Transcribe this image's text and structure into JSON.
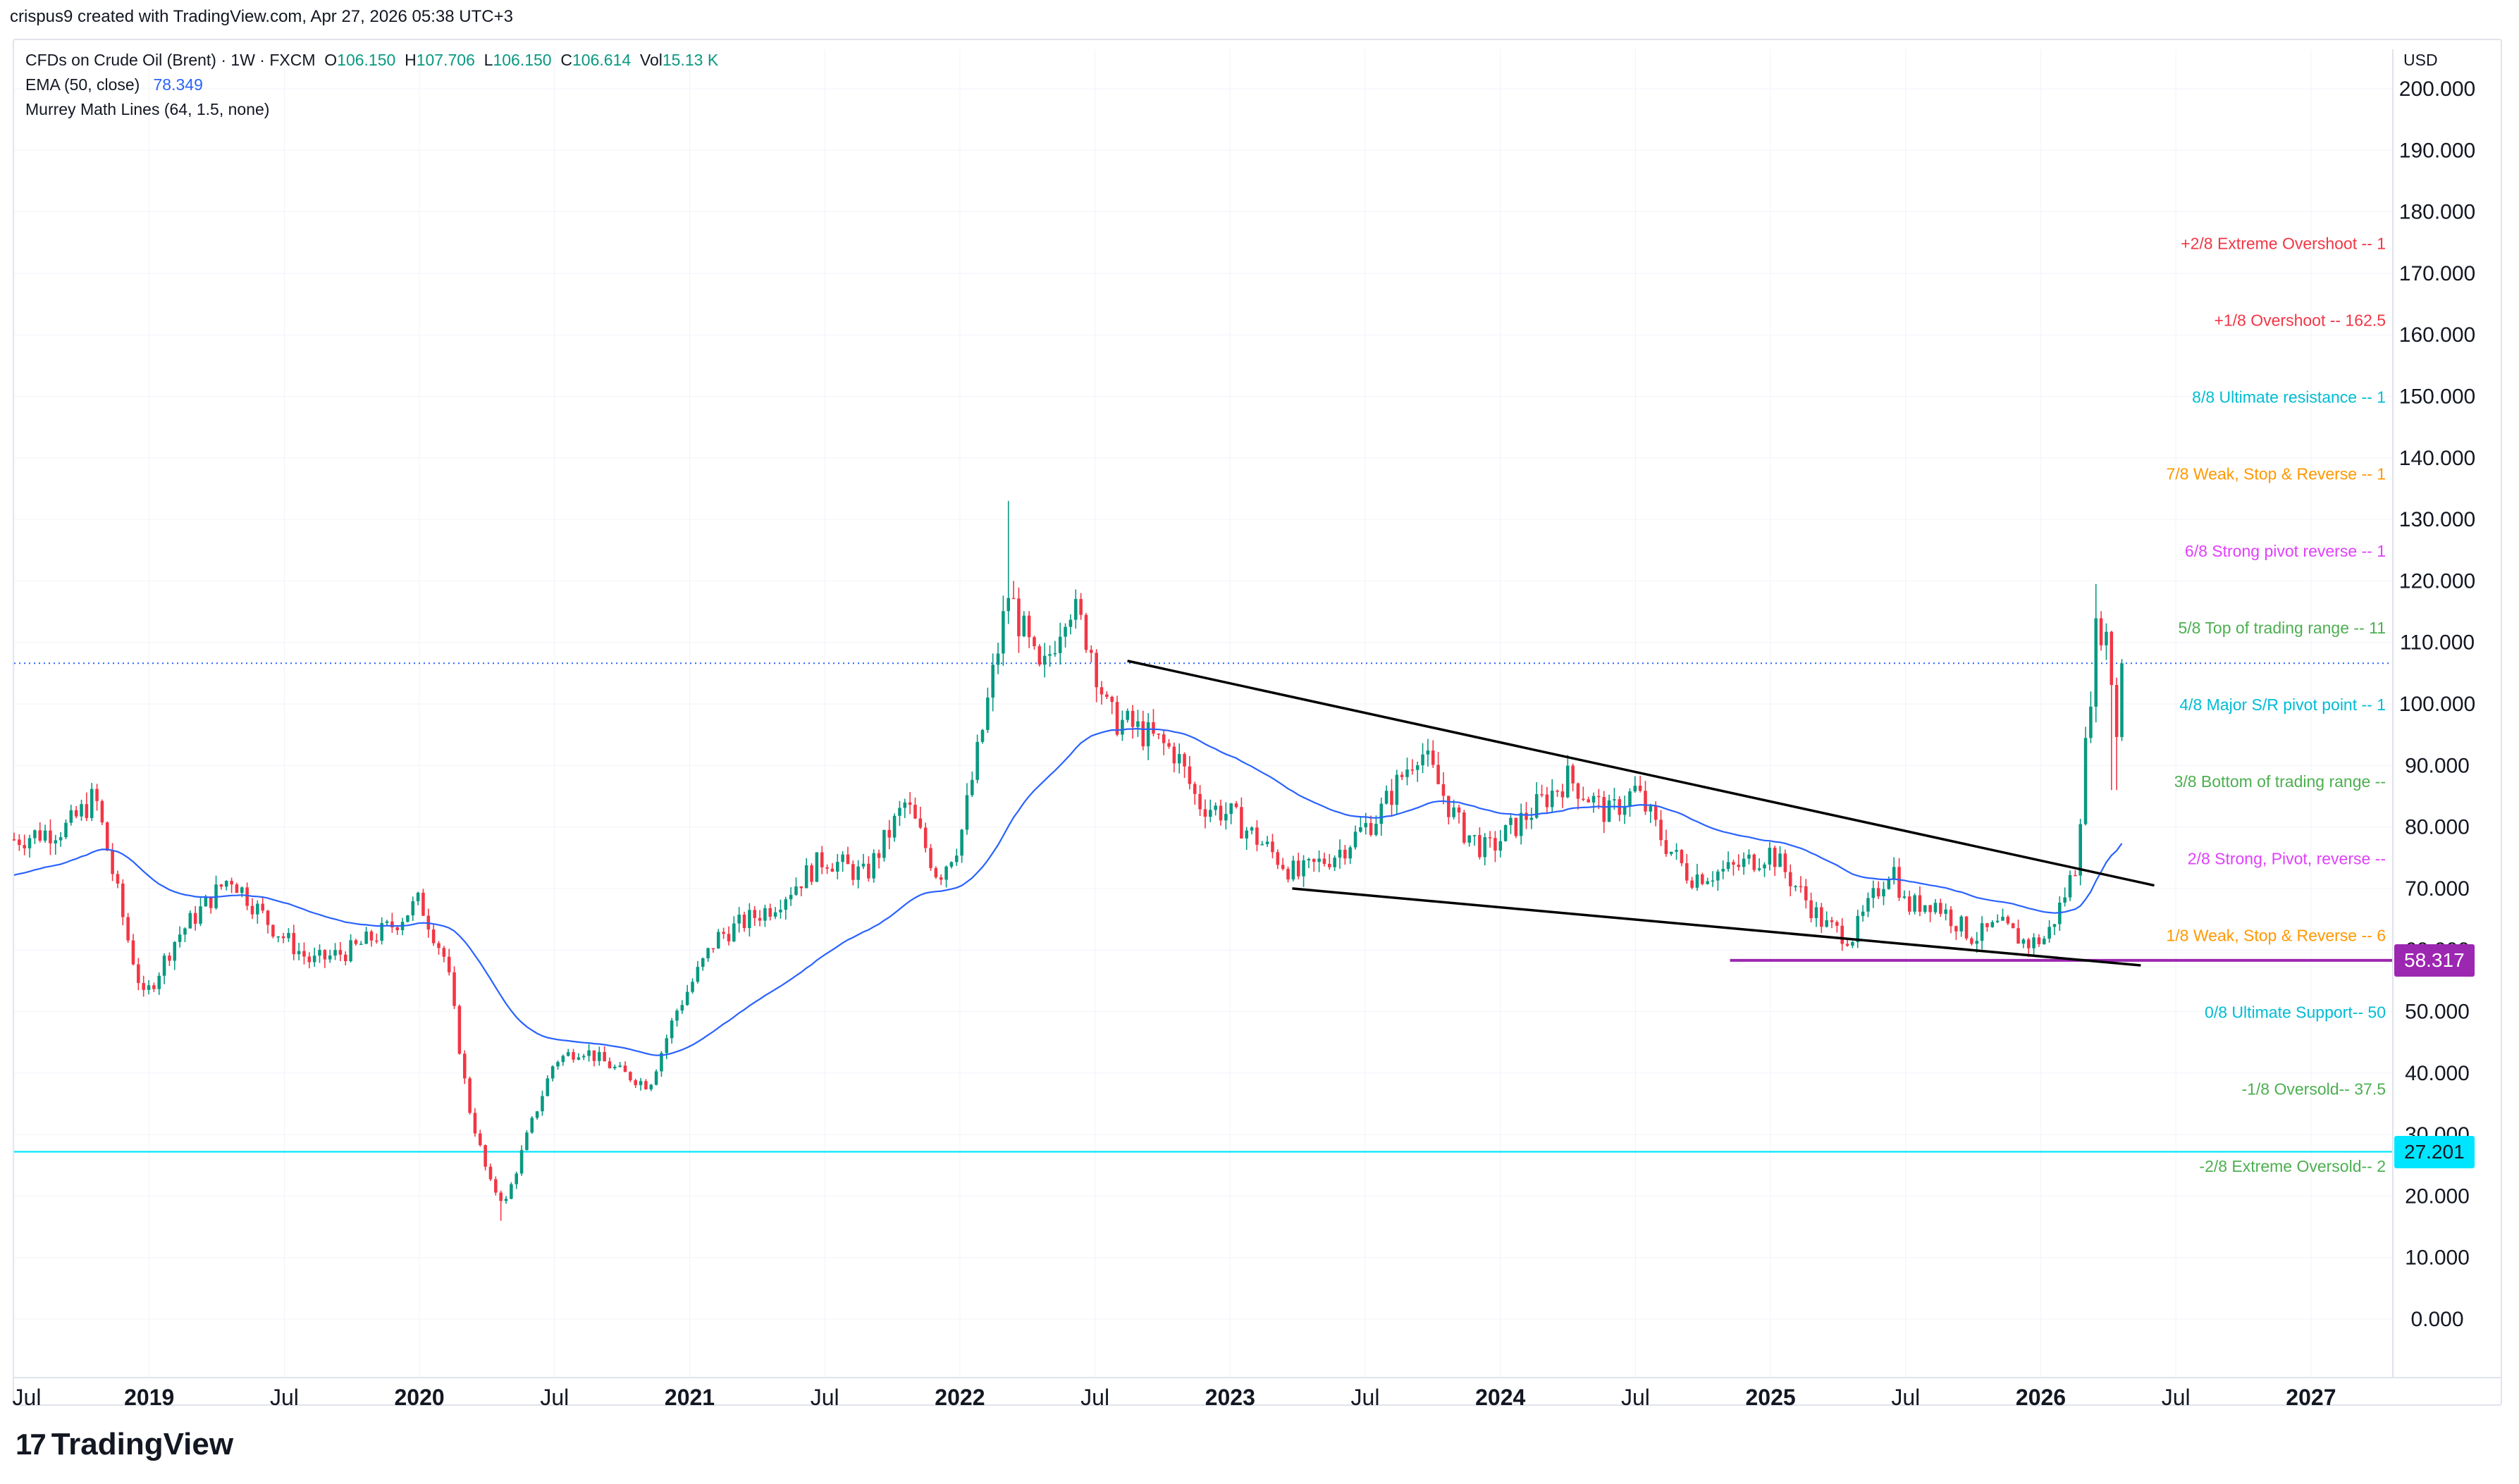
{
  "header": {
    "attribution": "crispus9 created with TradingView.com, Apr 27, 2026 05:38 UTC+3"
  },
  "legend": {
    "symbol": "CFDs on Crude Oil (Brent) · 1W · FXCM",
    "open_label": "O",
    "open": "106.150",
    "high_label": "H",
    "high": "107.706",
    "low_label": "L",
    "low": "106.150",
    "close_label": "C",
    "close": "106.614",
    "vol_label": "Vol",
    "vol": "15.13 K",
    "ema_label": "EMA (50, close)",
    "ema_value": "78.349",
    "murrey_label": "Murrey Math Lines (64, 1.5, none)"
  },
  "axis": {
    "currency": "USD"
  },
  "footer": {
    "brand": "TradingView",
    "brand_mark": "17"
  },
  "colors": {
    "up": "#089981",
    "down": "#f23645",
    "ema": "#2962ff",
    "wedge": "#000000",
    "support": "#9c27b0",
    "cyan_line": "#00e5ff",
    "last_price": "#2962ff",
    "grid": "#f0f3fa"
  },
  "chart_data": {
    "type": "candlestick",
    "title": "CFDs on Crude Oil (Brent) · 1W · FXCM",
    "ylabel": "USD",
    "ylim": [
      -5,
      205
    ],
    "y_ticks": [
      "0.000",
      "10.000",
      "20.000",
      "30.000",
      "40.000",
      "50.000",
      "60.000",
      "70.000",
      "80.000",
      "90.000",
      "100.000",
      "110.000",
      "120.000",
      "130.000",
      "140.000",
      "150.000",
      "160.000",
      "170.000",
      "180.000",
      "190.000",
      "200.000"
    ],
    "x_range": [
      2018.5,
      2027.25
    ],
    "x_ticks": [
      {
        "t": 2018.5,
        "label": "Jul",
        "bold": false
      },
      {
        "t": 2019.0,
        "label": "2019",
        "bold": true
      },
      {
        "t": 2019.5,
        "label": "Jul",
        "bold": false
      },
      {
        "t": 2020.0,
        "label": "2020",
        "bold": true
      },
      {
        "t": 2020.5,
        "label": "Jul",
        "bold": false
      },
      {
        "t": 2021.0,
        "label": "2021",
        "bold": true
      },
      {
        "t": 2021.5,
        "label": "Jul",
        "bold": false
      },
      {
        "t": 2022.0,
        "label": "2022",
        "bold": true
      },
      {
        "t": 2022.5,
        "label": "Jul",
        "bold": false
      },
      {
        "t": 2023.0,
        "label": "2023",
        "bold": true
      },
      {
        "t": 2023.5,
        "label": "Jul",
        "bold": false
      },
      {
        "t": 2024.0,
        "label": "2024",
        "bold": true
      },
      {
        "t": 2024.5,
        "label": "Jul",
        "bold": false
      },
      {
        "t": 2025.0,
        "label": "2025",
        "bold": true
      },
      {
        "t": 2025.5,
        "label": "Jul",
        "bold": false
      },
      {
        "t": 2026.0,
        "label": "2026",
        "bold": true
      },
      {
        "t": 2026.5,
        "label": "Jul",
        "bold": false
      },
      {
        "t": 2027.0,
        "label": "2027",
        "bold": true
      }
    ],
    "price_anchors": [
      [
        2018.5,
        78
      ],
      [
        2018.7,
        80
      ],
      [
        2018.8,
        85
      ],
      [
        2018.92,
        62
      ],
      [
        2018.98,
        52
      ],
      [
        2019.1,
        62
      ],
      [
        2019.3,
        72
      ],
      [
        2019.45,
        64
      ],
      [
        2019.6,
        58
      ],
      [
        2019.75,
        60
      ],
      [
        2019.9,
        64
      ],
      [
        2020.0,
        68
      ],
      [
        2020.1,
        58
      ],
      [
        2020.18,
        35
      ],
      [
        2020.26,
        22
      ],
      [
        2020.32,
        19
      ],
      [
        2020.4,
        30
      ],
      [
        2020.5,
        42
      ],
      [
        2020.6,
        44
      ],
      [
        2020.75,
        40
      ],
      [
        2020.85,
        38
      ],
      [
        2020.95,
        50
      ],
      [
        2021.1,
        62
      ],
      [
        2021.3,
        67
      ],
      [
        2021.5,
        75
      ],
      [
        2021.65,
        72
      ],
      [
        2021.8,
        84
      ],
      [
        2021.92,
        72
      ],
      [
        2022.0,
        78
      ],
      [
        2022.08,
        95
      ],
      [
        2022.18,
        118
      ],
      [
        2022.3,
        104
      ],
      [
        2022.4,
        117
      ],
      [
        2022.48,
        110
      ],
      [
        2022.55,
        98
      ],
      [
        2022.65,
        96
      ],
      [
        2022.8,
        92
      ],
      [
        2022.88,
        84
      ],
      [
        2023.0,
        82
      ],
      [
        2023.15,
        76
      ],
      [
        2023.25,
        72
      ],
      [
        2023.4,
        76
      ],
      [
        2023.55,
        82
      ],
      [
        2023.7,
        93
      ],
      [
        2023.85,
        80
      ],
      [
        2023.95,
        76
      ],
      [
        2024.1,
        82
      ],
      [
        2024.25,
        88
      ],
      [
        2024.4,
        82
      ],
      [
        2024.5,
        86
      ],
      [
        2024.6,
        78
      ],
      [
        2024.7,
        72
      ],
      [
        2024.85,
        73
      ],
      [
        2025.0,
        76
      ],
      [
        2025.1,
        70
      ],
      [
        2025.2,
        64
      ],
      [
        2025.3,
        62
      ],
      [
        2025.45,
        74
      ],
      [
        2025.5,
        67
      ],
      [
        2025.6,
        68
      ],
      [
        2025.75,
        62
      ],
      [
        2025.85,
        64
      ],
      [
        2025.95,
        61
      ],
      [
        2026.02,
        62
      ],
      [
        2026.08,
        68
      ],
      [
        2026.13,
        74
      ],
      [
        2026.18,
        100
      ],
      [
        2026.21,
        114
      ],
      [
        2026.25,
        110
      ],
      [
        2026.28,
        95
      ],
      [
        2026.31,
        106.6
      ]
    ],
    "price_spikes": [
      {
        "t": 2022.18,
        "high": 133
      },
      {
        "t": 2020.3,
        "low": 16
      },
      {
        "t": 2026.21,
        "high": 119.5
      },
      {
        "t": 2026.27,
        "low": 86
      }
    ],
    "ema_period": 50,
    "ema_last": 78.349,
    "last_close": 106.614,
    "last_price_line": 106.614,
    "horizontal_lines": [
      {
        "name": "support",
        "price": 58.317,
        "label": "58.317",
        "t_start": 2024.85,
        "t_end": 2027.25
      },
      {
        "name": "lower-band",
        "price": 27.201,
        "label": "27.201",
        "t_start": 2018.5,
        "t_end": 2027.25
      }
    ],
    "trendlines": [
      {
        "name": "wedge-upper",
        "t1": 2022.62,
        "p1": 107,
        "t2": 2026.42,
        "p2": 70.5
      },
      {
        "name": "wedge-lower",
        "t1": 2023.23,
        "p1": 70,
        "t2": 2026.37,
        "p2": 57.5
      }
    ],
    "murrey_levels": [
      {
        "label": "+2/8 Extreme Overshoot --  1",
        "price": 175,
        "color": "#f23645"
      },
      {
        "label": "+1/8 Overshoot --  162.5",
        "price": 162.5,
        "color": "#f23645"
      },
      {
        "label": "8/8 Ultimate resistance --  1",
        "price": 150,
        "color": "#00bcd4"
      },
      {
        "label": "7/8 Weak, Stop & Reverse --  1",
        "price": 137.5,
        "color": "#ff9800"
      },
      {
        "label": "6/8 Strong pivot reverse --  1",
        "price": 125,
        "color": "#e040fb"
      },
      {
        "label": "5/8 Top of trading range --  11",
        "price": 112.5,
        "color": "#4caf50"
      },
      {
        "label": "4/8 Major S/R pivot point --  1",
        "price": 100,
        "color": "#00bcd4"
      },
      {
        "label": "3/8 Bottom of trading range --",
        "price": 87.5,
        "color": "#4caf50"
      },
      {
        "label": "2/8 Strong, Pivot, reverse --",
        "price": 75,
        "color": "#e040fb"
      },
      {
        "label": "1/8 Weak, Stop & Reverse --  6",
        "price": 62.5,
        "color": "#ff9800"
      },
      {
        "label": "0/8 Ultimate Support--  50",
        "price": 50,
        "color": "#00bcd4"
      },
      {
        "label": "-1/8 Oversold--  37.5",
        "price": 37.5,
        "color": "#4caf50"
      },
      {
        "label": "-2/8 Extreme Oversold--  2",
        "price": 25,
        "color": "#4caf50"
      }
    ]
  }
}
